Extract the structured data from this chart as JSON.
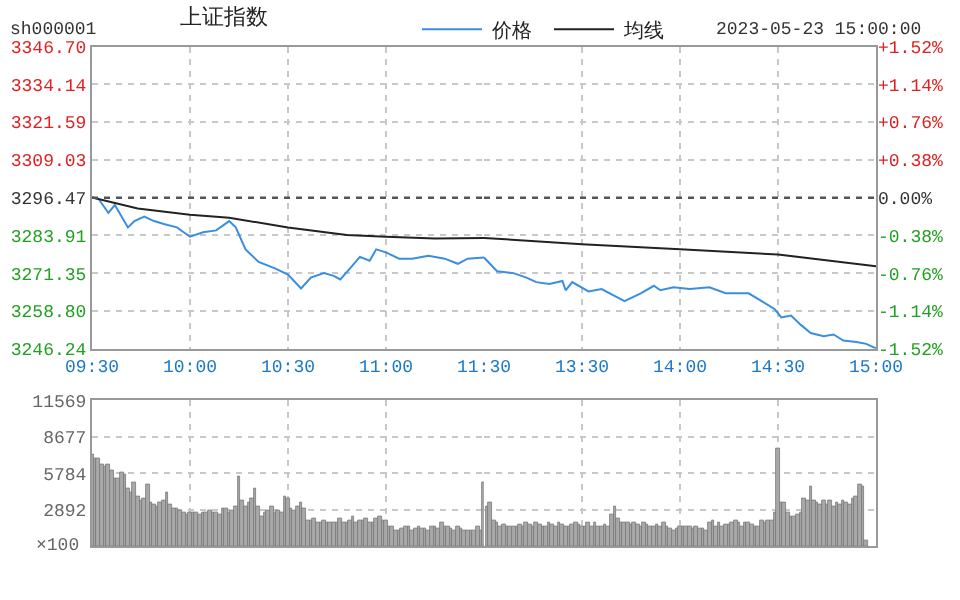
{
  "chart_data": [
    {
      "type": "line",
      "title": "上证指数",
      "annotations": [
        "sh000001",
        "2023-05-23 15:00:00"
      ],
      "xlim": [
        "2023-05-23T09:30",
        "2023-05-23T11:30"
      ],
      "xticks": [
        {
          "value": "2023-05-23T09:30",
          "label": "09:30"
        },
        {
          "value": "2023-05-23T10:00",
          "label": "10:00"
        },
        {
          "value": "2023-05-23T10:30",
          "label": "10:30"
        },
        {
          "value": "2023-05-23T11:00",
          "label": "11:00"
        },
        {
          "value": "2023-05-23T11:30",
          "label": "11:30"
        }
      ],
      "ylim": [
        3246.24,
        3346.7
      ],
      "yticks": [
        {
          "value": 3346.7,
          "label": "3346.70"
        },
        {
          "value": 3334.14,
          "label": "3334.14"
        },
        {
          "value": 3321.59,
          "label": "3321.59"
        },
        {
          "value": 3309.03,
          "label": "3309.03"
        },
        {
          "value": 3296.47,
          "label": "3296.47"
        },
        {
          "value": 3283.91,
          "label": "3283.91"
        },
        {
          "value": 3271.35,
          "label": "3271.35"
        },
        {
          "value": 3258.8,
          "label": "3258.80"
        },
        {
          "value": 3246.24,
          "label": "3246.24"
        }
      ],
      "ref_lines": [
        {
          "axis": "y",
          "value": 3296.47,
          "color": "#555555",
          "line_style": "dotted"
        }
      ],
      "grid": true,
      "legend": "top",
      "series": [
        {
          "name": "价格",
          "color": "#3a8ee0",
          "x": [
            "2023-05-23T09:30",
            "2023-05-23T09:32",
            "2023-05-23T09:35",
            "2023-05-23T09:37",
            "2023-05-23T09:41",
            "2023-05-23T09:43",
            "2023-05-23T09:46",
            "2023-05-23T09:49",
            "2023-05-23T09:52",
            "2023-05-23T09:56",
            "2023-05-23T10:00",
            "2023-05-23T10:04",
            "2023-05-23T10:08",
            "2023-05-23T10:12",
            "2023-05-23T10:14",
            "2023-05-23T10:17",
            "2023-05-23T10:21",
            "2023-05-23T10:26",
            "2023-05-23T10:30",
            "2023-05-23T10:34",
            "2023-05-23T10:37",
            "2023-05-23T10:41",
            "2023-05-23T10:44",
            "2023-05-23T10:46",
            "2023-05-23T10:49",
            "2023-05-23T10:52",
            "2023-05-23T10:55",
            "2023-05-23T10:57",
            "2023-05-23T11:00",
            "2023-05-23T11:04",
            "2023-05-23T11:08",
            "2023-05-23T11:13",
            "2023-05-23T11:18",
            "2023-05-23T11:22",
            "2023-05-23T11:25",
            "2023-05-23T11:30"
          ],
          "values": [
            3296.5,
            3296.1,
            3291.4,
            3294.0,
            3286.6,
            3288.7,
            3290.2,
            3288.7,
            3287.7,
            3286.6,
            3283.5,
            3285.0,
            3285.6,
            3288.7,
            3286.6,
            3279.3,
            3275.1,
            3273.0,
            3270.9,
            3266.3,
            3269.9,
            3271.4,
            3270.5,
            3269.3,
            3273.0,
            3276.8,
            3275.5,
            3279.3,
            3278.3,
            3276.2,
            3276.2,
            3277.2,
            3276.2,
            3274.5,
            3276.2,
            3276.6
          ]
        },
        {
          "name": "均线",
          "color": "#222222",
          "x": [
            "2023-05-23T09:30",
            "2023-05-23T09:44",
            "2023-05-23T10:00",
            "2023-05-23T10:12",
            "2023-05-23T10:30",
            "2023-05-23T10:48",
            "2023-05-23T11:00",
            "2023-05-23T11:15",
            "2023-05-23T11:30"
          ],
          "values": [
            3296.5,
            3292.9,
            3290.8,
            3289.8,
            3286.6,
            3284.1,
            3283.5,
            3282.9,
            3283.1
          ]
        }
      ]
    },
    {
      "type": "line",
      "xlim": [
        "2023-05-23T13:00",
        "2023-05-23T15:00"
      ],
      "xticks": [
        {
          "value": "2023-05-23T13:30",
          "label": "13:30"
        },
        {
          "value": "2023-05-23T14:00",
          "label": "14:00"
        },
        {
          "value": "2023-05-23T14:30",
          "label": "14:30"
        },
        {
          "value": "2023-05-23T15:00",
          "label": "15:00"
        }
      ],
      "ylim": [
        3246.24,
        3346.7
      ],
      "tick_labels": "x",
      "yticks": [
        3346.7,
        3334.14,
        3321.59,
        3309.03,
        3296.47,
        3283.91,
        3271.35,
        3258.8,
        3246.24
      ],
      "y2lim": [
        -1.52,
        1.52
      ],
      "y2ticks": [
        {
          "value": 1.52,
          "label": "+1.52%"
        },
        {
          "value": 1.14,
          "label": "+1.14%"
        },
        {
          "value": 0.76,
          "label": "+0.76%"
        },
        {
          "value": 0.38,
          "label": "+0.38%"
        },
        {
          "value": 0,
          "label": "0.00%"
        },
        {
          "value": -0.38,
          "label": "-0.38%"
        },
        {
          "value": -0.76,
          "label": "-0.76%"
        },
        {
          "value": -1.14,
          "label": "-1.14%"
        },
        {
          "value": -1.52,
          "label": "-1.52%"
        }
      ],
      "ref_lines": [
        {
          "axis": "y",
          "value": 3296.47,
          "color": "#555555",
          "line_style": "dotted"
        }
      ],
      "grid": true,
      "series": [
        {
          "color": "#3a8ee0",
          "x": [
            "2023-05-23T13:00",
            "2023-05-23T13:04",
            "2023-05-23T13:09",
            "2023-05-23T13:13",
            "2023-05-23T13:16",
            "2023-05-23T13:20",
            "2023-05-23T13:24",
            "2023-05-23T13:25",
            "2023-05-23T13:27",
            "2023-05-23T13:32",
            "2023-05-23T13:36",
            "2023-05-23T13:43",
            "2023-05-23T13:48",
            "2023-05-23T13:52",
            "2023-05-23T13:54",
            "2023-05-23T13:58",
            "2023-05-23T14:03",
            "2023-05-23T14:09",
            "2023-05-23T14:14",
            "2023-05-23T14:21",
            "2023-05-23T14:25",
            "2023-05-23T14:29",
            "2023-05-23T14:31",
            "2023-05-23T14:34",
            "2023-05-23T14:37",
            "2023-05-23T14:40",
            "2023-05-23T14:44",
            "2023-05-23T14:47",
            "2023-05-23T14:50",
            "2023-05-23T14:54",
            "2023-05-23T14:57",
            "2023-05-23T15:00"
          ],
          "values": [
            3276.6,
            3272.0,
            3271.4,
            3269.9,
            3268.4,
            3267.8,
            3268.8,
            3265.7,
            3268.4,
            3265.3,
            3266.1,
            3262.1,
            3264.7,
            3267.2,
            3265.7,
            3266.7,
            3266.1,
            3266.7,
            3264.7,
            3264.7,
            3262.1,
            3259.4,
            3256.7,
            3257.3,
            3254.2,
            3251.5,
            3250.4,
            3251.0,
            3249.0,
            3248.5,
            3247.9,
            3246.4
          ]
        },
        {
          "color": "#222222",
          "x": [
            "2023-05-23T13:00",
            "2023-05-23T13:30",
            "2023-05-23T14:00",
            "2023-05-23T14:30",
            "2023-05-23T15:00"
          ],
          "values": [
            3283.1,
            3281.0,
            3279.3,
            3277.6,
            3273.7
          ]
        }
      ]
    },
    {
      "type": "bar",
      "tick_labels": "y",
      "grid": true,
      "color": "#a8a8a8",
      "ylabel": "×100",
      "xlim": [
        "2023-05-23T09:30",
        "2023-05-23T11:30"
      ],
      "xticks": [
        {
          "value": "2023-05-23T09:30",
          "label": null
        },
        {
          "value": "2023-05-23T10:00",
          "label": null
        },
        {
          "value": "2023-05-23T10:30",
          "label": null
        },
        {
          "value": "2023-05-23T11:00",
          "label": null
        },
        {
          "value": "2023-05-23T11:30",
          "label": null
        }
      ],
      "ylim": [
        0,
        11569
      ],
      "yticks": [
        2892,
        5784,
        8677,
        11569
      ],
      "x": [
        "2023-05-23T09:30",
        "2023-05-23T09:31",
        "2023-05-23T09:32",
        "2023-05-23T09:33",
        "2023-05-23T09:34",
        "2023-05-23T09:35",
        "2023-05-23T09:36",
        "2023-05-23T09:37",
        "2023-05-23T09:38",
        "2023-05-23T09:39",
        "2023-05-23T09:40",
        "2023-05-23T09:41",
        "2023-05-23T09:42",
        "2023-05-23T09:43",
        "2023-05-23T09:44",
        "2023-05-23T09:45",
        "2023-05-23T09:46",
        "2023-05-23T09:47",
        "2023-05-23T09:48",
        "2023-05-23T09:49",
        "2023-05-23T09:50",
        "2023-05-23T09:51",
        "2023-05-23T09:52",
        "2023-05-23T09:53",
        "2023-05-23T09:54",
        "2023-05-23T09:55",
        "2023-05-23T09:56",
        "2023-05-23T09:57",
        "2023-05-23T09:58",
        "2023-05-23T09:59",
        "2023-05-23T10:00",
        "2023-05-23T10:01",
        "2023-05-23T10:02",
        "2023-05-23T10:03",
        "2023-05-23T10:04",
        "2023-05-23T10:05",
        "2023-05-23T10:06",
        "2023-05-23T10:07",
        "2023-05-23T10:08",
        "2023-05-23T10:09",
        "2023-05-23T10:10",
        "2023-05-23T10:11",
        "2023-05-23T10:12",
        "2023-05-23T10:13",
        "2023-05-23T10:14",
        "2023-05-23T10:15",
        "2023-05-23T10:16",
        "2023-05-23T10:17",
        "2023-05-23T10:18",
        "2023-05-23T10:19",
        "2023-05-23T10:20",
        "2023-05-23T10:21",
        "2023-05-23T10:22",
        "2023-05-23T10:23",
        "2023-05-23T10:24",
        "2023-05-23T10:25",
        "2023-05-23T10:26",
        "2023-05-23T10:27",
        "2023-05-23T10:28",
        "2023-05-23T10:29",
        "2023-05-23T10:30",
        "2023-05-23T10:31",
        "2023-05-23T10:32",
        "2023-05-23T10:33",
        "2023-05-23T10:34",
        "2023-05-23T10:35",
        "2023-05-23T10:36",
        "2023-05-23T10:37",
        "2023-05-23T10:38",
        "2023-05-23T10:39",
        "2023-05-23T10:40",
        "2023-05-23T10:41",
        "2023-05-23T10:42",
        "2023-05-23T10:43",
        "2023-05-23T10:44",
        "2023-05-23T10:45",
        "2023-05-23T10:46",
        "2023-05-23T10:47",
        "2023-05-23T10:48",
        "2023-05-23T10:49",
        "2023-05-23T10:50",
        "2023-05-23T10:51",
        "2023-05-23T10:52",
        "2023-05-23T10:53",
        "2023-05-23T10:54",
        "2023-05-23T10:55",
        "2023-05-23T10:56",
        "2023-05-23T10:57",
        "2023-05-23T10:58",
        "2023-05-23T10:59",
        "2023-05-23T11:00",
        "2023-05-23T11:01",
        "2023-05-23T11:02",
        "2023-05-23T11:03",
        "2023-05-23T11:04",
        "2023-05-23T11:05",
        "2023-05-23T11:06",
        "2023-05-23T11:07",
        "2023-05-23T11:08",
        "2023-05-23T11:09",
        "2023-05-23T11:10",
        "2023-05-23T11:11",
        "2023-05-23T11:12",
        "2023-05-23T11:13",
        "2023-05-23T11:14",
        "2023-05-23T11:15",
        "2023-05-23T11:16",
        "2023-05-23T11:17",
        "2023-05-23T11:18",
        "2023-05-23T11:19",
        "2023-05-23T11:20",
        "2023-05-23T11:21",
        "2023-05-23T11:22",
        "2023-05-23T11:23",
        "2023-05-23T11:24",
        "2023-05-23T11:25",
        "2023-05-23T11:26",
        "2023-05-23T11:27",
        "2023-05-23T11:28",
        "2023-05-23T11:29",
        "2023-05-23T11:30"
      ],
      "values": [
        7300,
        7000,
        6900,
        6500,
        6300,
        6400,
        6000,
        5300,
        5400,
        5800,
        5700,
        4600,
        4300,
        5000,
        4000,
        3600,
        3800,
        4900,
        3500,
        3300,
        3100,
        3400,
        3600,
        4300,
        3300,
        3000,
        2900,
        2800,
        2600,
        2500,
        2600,
        2700,
        2600,
        2500,
        2700,
        2600,
        2800,
        2700,
        2600,
        2500,
        2900,
        3000,
        2700,
        2800,
        3200,
        5500,
        3600,
        3200,
        3400,
        3800,
        4500,
        3200,
        2400,
        2700,
        2800,
        3100,
        2700,
        2800,
        2600,
        3900,
        3800,
        2900,
        2800,
        3100,
        3400,
        3000,
        2100,
        2000,
        2200,
        1900,
        1900,
        2000,
        1800,
        1800,
        1900,
        1800,
        2200,
        1900,
        1900,
        2000,
        2400,
        1900,
        2000,
        2100,
        2200,
        1900,
        1800,
        2200,
        2300,
        2000,
        2000,
        1500,
        1600,
        1300,
        1300,
        1400,
        1500,
        1500,
        1300,
        1400,
        1500,
        1400,
        1400,
        1300,
        1500,
        1500,
        1400,
        1800,
        1500,
        1600,
        1400,
        1300,
        1500,
        1400,
        1300,
        1200,
        1200,
        1300,
        1500,
        1200,
        5000
      ]
    },
    {
      "type": "bar",
      "tick_labels": false,
      "grid": true,
      "color": "#a8a8a8",
      "xlim": [
        "2023-05-23T13:00",
        "2023-05-23T15:00"
      ],
      "xticks": [
        {
          "value": "2023-05-23T13:30",
          "label": null
        },
        {
          "value": "2023-05-23T14:00",
          "label": null
        },
        {
          "value": "2023-05-23T14:30",
          "label": null
        },
        {
          "value": "2023-05-23T15:00",
          "label": null
        }
      ],
      "ylim": [
        0,
        11569
      ],
      "yticks": [
        2892,
        5784,
        8677,
        11569
      ],
      "x": [
        "2023-05-23T13:01",
        "2023-05-23T13:02",
        "2023-05-23T13:03",
        "2023-05-23T13:04",
        "2023-05-23T13:05",
        "2023-05-23T13:06",
        "2023-05-23T13:07",
        "2023-05-23T13:08",
        "2023-05-23T13:09",
        "2023-05-23T13:10",
        "2023-05-23T13:11",
        "2023-05-23T13:12",
        "2023-05-23T13:13",
        "2023-05-23T13:14",
        "2023-05-23T13:15",
        "2023-05-23T13:16",
        "2023-05-23T13:17",
        "2023-05-23T13:18",
        "2023-05-23T13:19",
        "2023-05-23T13:20",
        "2023-05-23T13:21",
        "2023-05-23T13:22",
        "2023-05-23T13:23",
        "2023-05-23T13:24",
        "2023-05-23T13:25",
        "2023-05-23T13:26",
        "2023-05-23T13:27",
        "2023-05-23T13:28",
        "2023-05-23T13:29",
        "2023-05-23T13:30",
        "2023-05-23T13:31",
        "2023-05-23T13:32",
        "2023-05-23T13:33",
        "2023-05-23T13:34",
        "2023-05-23T13:35",
        "2023-05-23T13:36",
        "2023-05-23T13:37",
        "2023-05-23T13:38",
        "2023-05-23T13:39",
        "2023-05-23T13:40",
        "2023-05-23T13:41",
        "2023-05-23T13:42",
        "2023-05-23T13:43",
        "2023-05-23T13:44",
        "2023-05-23T13:45",
        "2023-05-23T13:46",
        "2023-05-23T13:47",
        "2023-05-23T13:48",
        "2023-05-23T13:49",
        "2023-05-23T13:50",
        "2023-05-23T13:51",
        "2023-05-23T13:52",
        "2023-05-23T13:53",
        "2023-05-23T13:54",
        "2023-05-23T13:55",
        "2023-05-23T13:56",
        "2023-05-23T13:57",
        "2023-05-23T13:58",
        "2023-05-23T13:59",
        "2023-05-23T14:00",
        "2023-05-23T14:01",
        "2023-05-23T14:02",
        "2023-05-23T14:03",
        "2023-05-23T14:04",
        "2023-05-23T14:05",
        "2023-05-23T14:06",
        "2023-05-23T14:07",
        "2023-05-23T14:08",
        "2023-05-23T14:09",
        "2023-05-23T14:10",
        "2023-05-23T14:11",
        "2023-05-23T14:12",
        "2023-05-23T14:13",
        "2023-05-23T14:14",
        "2023-05-23T14:15",
        "2023-05-23T14:16",
        "2023-05-23T14:17",
        "2023-05-23T14:18",
        "2023-05-23T14:19",
        "2023-05-23T14:20",
        "2023-05-23T14:21",
        "2023-05-23T14:22",
        "2023-05-23T14:23",
        "2023-05-23T14:24",
        "2023-05-23T14:25",
        "2023-05-23T14:26",
        "2023-05-23T14:27",
        "2023-05-23T14:28",
        "2023-05-23T14:29",
        "2023-05-23T14:30",
        "2023-05-23T14:31",
        "2023-05-23T14:32",
        "2023-05-23T14:33",
        "2023-05-23T14:34",
        "2023-05-23T14:35",
        "2023-05-23T14:36",
        "2023-05-23T14:37",
        "2023-05-23T14:38",
        "2023-05-23T14:39",
        "2023-05-23T14:40",
        "2023-05-23T14:41",
        "2023-05-23T14:42",
        "2023-05-23T14:43",
        "2023-05-23T14:44",
        "2023-05-23T14:45",
        "2023-05-23T14:46",
        "2023-05-23T14:47",
        "2023-05-23T14:48",
        "2023-05-23T14:49",
        "2023-05-23T14:50",
        "2023-05-23T14:51",
        "2023-05-23T14:52",
        "2023-05-23T14:53",
        "2023-05-23T14:54",
        "2023-05-23T14:55",
        "2023-05-23T14:56",
        "2023-05-23T14:57"
      ],
      "values": [
        3100,
        3500,
        2000,
        1800,
        1600,
        1700,
        1500,
        1600,
        1600,
        1600,
        1700,
        1600,
        1800,
        1700,
        1600,
        1800,
        1700,
        1500,
        1600,
        1800,
        1700,
        1600,
        1800,
        1700,
        1500,
        1600,
        1700,
        1900,
        1700,
        1600,
        1600,
        1900,
        1600,
        1800,
        1500,
        1600,
        1700,
        1500,
        2500,
        3200,
        2200,
        1900,
        1800,
        1800,
        1700,
        1900,
        1700,
        1600,
        1800,
        1700,
        1500,
        1600,
        1700,
        1500,
        1800,
        1600,
        1400,
        1300,
        1400,
        1500,
        1500,
        1500,
        1500,
        1400,
        1500,
        1400,
        1400,
        1300,
        1800,
        2000,
        1600,
        1800,
        1500,
        1700,
        1700,
        1800,
        2100,
        1800,
        1600,
        1800,
        1900,
        1700,
        1600,
        1600,
        2000,
        1800,
        2100,
        2000,
        2600,
        7800,
        3400,
        3500,
        2600,
        2300,
        2400,
        2500,
        2600,
        3700,
        3600,
        4800,
        3600,
        3500,
        3300,
        3600,
        3300,
        3600,
        3100,
        3500,
        3300,
        3600,
        3500,
        3300,
        3700,
        3900,
        4900,
        4700,
        400
      ]
    }
  ]
}
